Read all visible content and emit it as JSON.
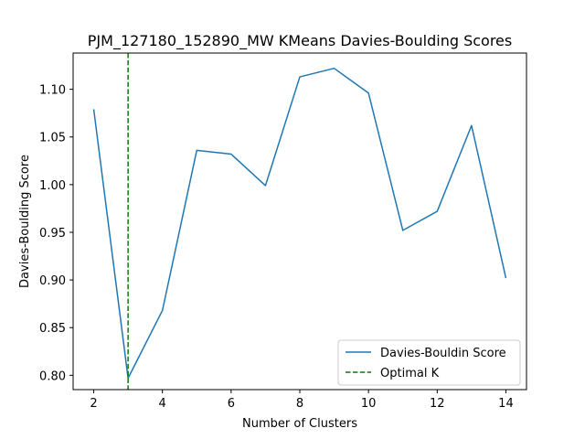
{
  "chart_data": {
    "type": "line",
    "title": "PJM_127180_152890_MW KMeans Davies-Boulding Scores",
    "xlabel": "Number of Clusters",
    "ylabel": "Davies-Boulding Score",
    "xlim": [
      1.4,
      14.6
    ],
    "ylim": [
      0.785,
      1.138
    ],
    "xticks": [
      2,
      4,
      6,
      8,
      10,
      12,
      14
    ],
    "yticks": [
      0.8,
      0.85,
      0.9,
      0.95,
      1.0,
      1.05,
      1.1
    ],
    "ytick_labels": [
      "0.80",
      "0.85",
      "0.90",
      "0.95",
      "1.00",
      "1.05",
      "1.10"
    ],
    "grid": false,
    "legend_position": "lower-right",
    "series": [
      {
        "name": "Davies-Bouldin Score",
        "color": "#1f77b4",
        "style": "solid",
        "x": [
          2,
          3,
          4,
          5,
          6,
          7,
          8,
          9,
          10,
          11,
          12,
          13,
          14
        ],
        "y": [
          1.079,
          0.797,
          0.868,
          1.036,
          1.032,
          0.999,
          1.113,
          1.122,
          1.096,
          0.952,
          0.972,
          1.062,
          0.902
        ]
      }
    ],
    "vlines": [
      {
        "name": "Optimal K",
        "x": 3,
        "color": "#008000",
        "style": "dashed"
      }
    ]
  }
}
